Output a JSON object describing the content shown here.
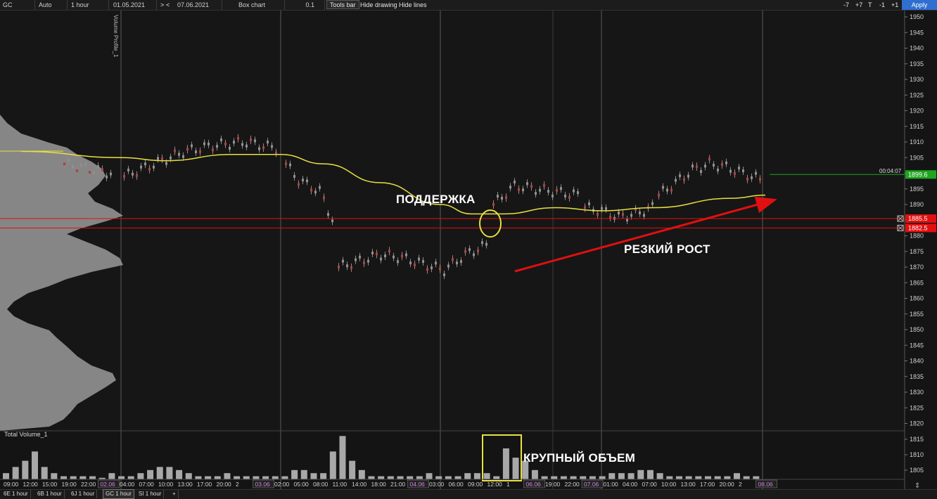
{
  "toolbar": {
    "symbol": "GC",
    "scale": "Auto",
    "interval": "1 hour",
    "date_from": "01.05.2021",
    "nav_forward": ">",
    "nav_back": "<",
    "date_to": "07.06.2021",
    "chart_type": "Box chart",
    "tick_size": "0.1",
    "tools_bar": "Tools bar",
    "hide_drawing": "Hide drawing",
    "hide_lines": "Hide lines",
    "btn_minus7": "-7",
    "btn_plus7": "+7",
    "btn_t": "T",
    "btn_minus1": "-1",
    "btn_plus1": "+1",
    "apply": "Apply"
  },
  "price_axis": {
    "ticks": [
      "1950",
      "1945",
      "1940",
      "1935",
      "1930",
      "1925",
      "1920",
      "1915",
      "1910",
      "1905",
      "1900",
      "1895",
      "1890",
      "1885",
      "1880",
      "1875",
      "1870",
      "1865",
      "1860",
      "1855",
      "1850",
      "1845",
      "1840",
      "1835",
      "1830",
      "1825",
      "1820"
    ],
    "current_price": "1899.6",
    "countdown": "00:04:07",
    "level_1": "1885.5",
    "level_2": "1882.5",
    "current_color": "#1fa51f",
    "level_color": "#e01010"
  },
  "volume_profile": {
    "label": "Volume Profile_1"
  },
  "volume_panel": {
    "label": "Total Volume_1",
    "ticks": [
      "1815",
      "1810",
      "1805"
    ]
  },
  "time_axis": {
    "labels": [
      "09:00",
      "12:00",
      "15:00",
      "19:00",
      "22:00",
      "02.06",
      "04:00",
      "07:00",
      "10:00",
      "13:00",
      "17:00",
      "20:00",
      "2",
      "03.06",
      "02:00",
      "05:00",
      "08:00",
      "11:00",
      "14:00",
      "18:00",
      "21:00",
      "04.06",
      "03:00",
      "06:00",
      "09:00",
      "12:00",
      "1",
      "06.06",
      "19:00",
      "22:00",
      "07.06",
      "01:00",
      "04:00",
      "07:00",
      "10:00",
      "13:00",
      "17:00",
      "20:00",
      "2",
      "08.06"
    ]
  },
  "annotations": {
    "support": "ПОДДЕРЖКА",
    "sharp_rise": "РЕЗКИЙ РОСТ",
    "large_volume": "КРУПНЫЙ ОБЪЕМ"
  },
  "tabs": [
    "6E 1 hour",
    "6B 1 hour",
    "6J 1 hour",
    "GC 1 hour",
    "SI 1 hour",
    "+"
  ],
  "active_tab": "GC 1 hour",
  "colors": {
    "ma_line": "#e8e040",
    "arrow": "#e01010",
    "annotation_box": "#e8e040",
    "date_label": "#d080e0"
  },
  "chart_data": {
    "type": "candlestick",
    "price_range": [
      1817,
      1952
    ],
    "moving_average": [
      {
        "time": "01.06 09:00",
        "price": 1907
      },
      {
        "time": "02.06 00:00",
        "price": 1905
      },
      {
        "time": "02.06 09:00",
        "price": 1904
      },
      {
        "time": "02.06 20:00",
        "price": 1906
      },
      {
        "time": "03.06 02:00",
        "price": 1906
      },
      {
        "time": "03.06 10:00",
        "price": 1903
      },
      {
        "time": "03.06 18:00",
        "price": 1897
      },
      {
        "time": "04.06 05:00",
        "price": 1890
      },
      {
        "time": "04.06 07:00",
        "price": 1887
      },
      {
        "time": "04.06 09:00",
        "price": 1887
      },
      {
        "time": "06.06 21:00",
        "price": 1889
      },
      {
        "time": "07.06 06:00",
        "price": 1888
      },
      {
        "time": "07.06 14:00",
        "price": 1889
      },
      {
        "time": "08.06 00:00",
        "price": 1892
      },
      {
        "time": "08.06 03:00",
        "price": 1893
      }
    ],
    "key_prices": {
      "support_high": 1885.5,
      "support_low": 1882.5,
      "last": 1899.6
    },
    "volume_bars": [
      2,
      4,
      6,
      9,
      4,
      2,
      1,
      1,
      1,
      1,
      0.5,
      2,
      1,
      1,
      2,
      3,
      4,
      4,
      3,
      2,
      1,
      1,
      1,
      2,
      1,
      1,
      1,
      1,
      1,
      1,
      3,
      3,
      2,
      2,
      9,
      14,
      6,
      3,
      1,
      1,
      1,
      1,
      1,
      1,
      2,
      1,
      1,
      1,
      2,
      2,
      2,
      1,
      10,
      7,
      6,
      3,
      1,
      1,
      1,
      1,
      1,
      1,
      1,
      2,
      2,
      2,
      3,
      3,
      2,
      1,
      1,
      1,
      1,
      1,
      1,
      1,
      2,
      1,
      1
    ]
  }
}
